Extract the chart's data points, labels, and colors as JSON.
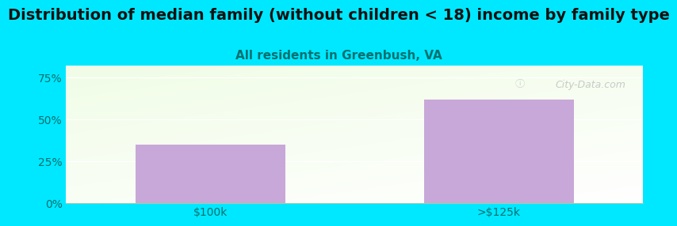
{
  "title": "Distribution of median family (without children < 18) income by family type",
  "subtitle": "All residents in Greenbush, VA",
  "categories": [
    "$100k",
    ">$125k"
  ],
  "values": [
    35.0,
    62.0
  ],
  "bar_color": "#c8a8d8",
  "yticks": [
    0,
    25,
    50,
    75
  ],
  "ytick_labels": [
    "0%",
    "25%",
    "50%",
    "75%"
  ],
  "ylim": [
    0,
    82
  ],
  "title_fontsize": 14,
  "subtitle_fontsize": 11,
  "tick_fontsize": 10,
  "bg_outer_color": "#00e8ff",
  "watermark_text": "City-Data.com",
  "title_color": "#111111",
  "subtitle_color": "#007070",
  "tick_label_color": "#007070",
  "grid_color": "#ccddcc"
}
